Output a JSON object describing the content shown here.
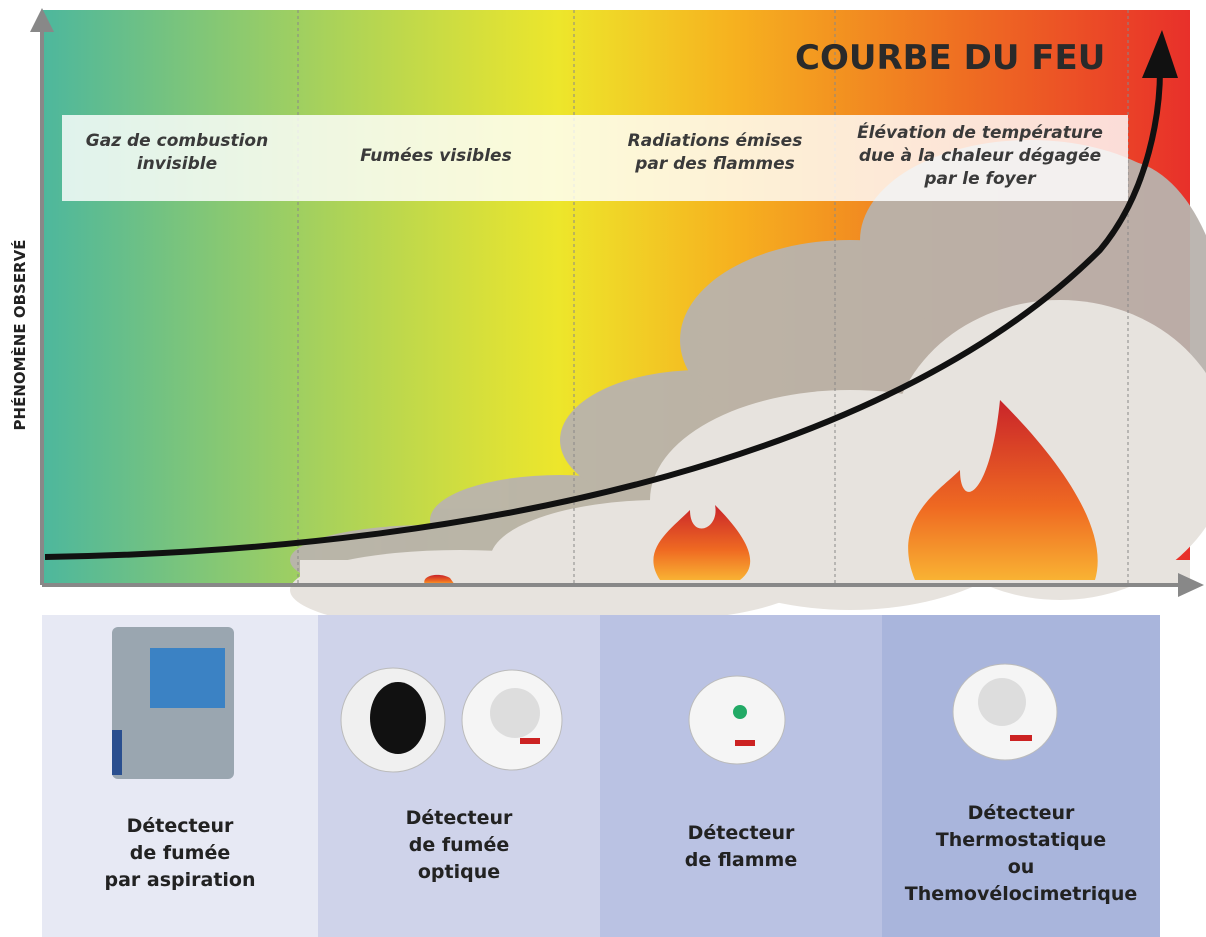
{
  "title": "COURBE DU FEU",
  "y_axis_label": "PHÉNOMÈNE OBSERVÉ",
  "phases": [
    {
      "lines": [
        "Gaz de combustion",
        "invisible"
      ]
    },
    {
      "lines": [
        "Fumées visibles"
      ]
    },
    {
      "lines": [
        "Radiations émises",
        "par des flammes"
      ]
    },
    {
      "lines": [
        "Élévation de température",
        "due à la chaleur dégagée",
        "par le foyer"
      ]
    }
  ],
  "detectors": [
    {
      "lines": [
        "Détecteur",
        "de fumée",
        "par aspiration"
      ]
    },
    {
      "lines": [
        "Détecteur",
        "de fumée",
        "optique"
      ]
    },
    {
      "lines": [
        "Détecteur",
        "de flamme"
      ]
    },
    {
      "lines": [
        "Détecteur",
        "Thermostatique",
        "ou",
        "Themovélocimetrique"
      ]
    }
  ]
}
